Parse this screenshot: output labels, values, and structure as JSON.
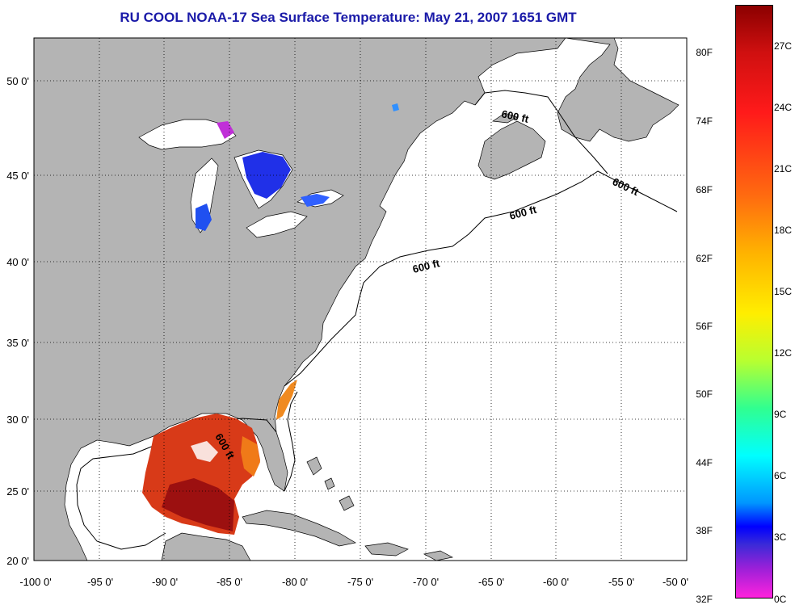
{
  "title": "RU COOL  NOAA-17  Sea Surface Temperature:  May 21, 2007 1651 GMT",
  "axes": {
    "x_ticks": [
      "-100 0'",
      "-95 0'",
      "-90 0'",
      "-85 0'",
      "-80 0'",
      "-75 0'",
      "-70 0'",
      "-65 0'",
      "-60 0'",
      "-55 0'",
      "-50 0'"
    ],
    "y_ticks": [
      "50 0'",
      "45 0'",
      "40 0'",
      "35 0'",
      "30 0'",
      "25 0'",
      "20 0'"
    ]
  },
  "contour_labels": [
    "600 ft",
    "600 ft",
    "600 ft",
    "600 ft",
    "600 ft"
  ],
  "colorbar": {
    "fahrenheit": [
      "80F",
      "74F",
      "68F",
      "62F",
      "56F",
      "50F",
      "44F",
      "38F",
      "32F"
    ],
    "celsius": [
      "27C",
      "24C",
      "21C",
      "18C",
      "15C",
      "12C",
      "9C",
      "6C",
      "3C",
      "0C"
    ]
  },
  "colors": {
    "land": "#b4b4b4",
    "ocean": "#ffffff",
    "title": "#1a1aa8",
    "warm": "#d83a18",
    "cold": "#2030e8"
  }
}
